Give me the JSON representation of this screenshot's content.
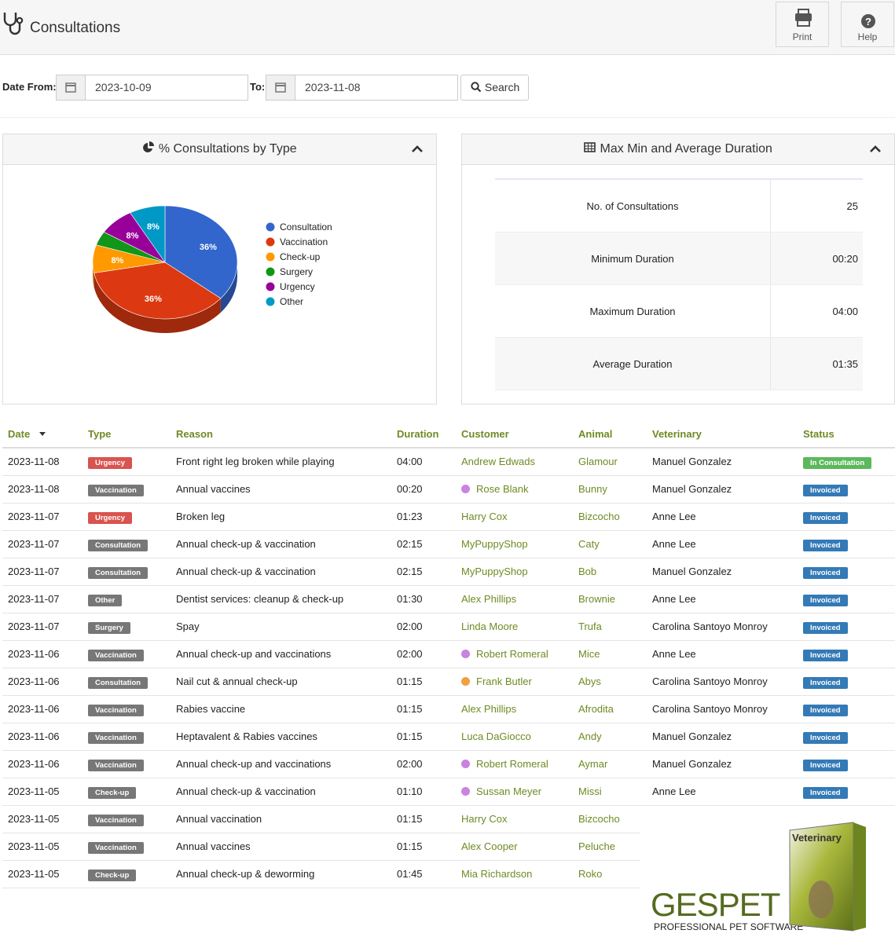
{
  "header": {
    "title": "Consultations",
    "buttons": [
      "Print",
      "Help"
    ]
  },
  "filters": {
    "from_label": "Date From:",
    "from": "2023-10-09",
    "to_label": "To:",
    "to": "2023-11-08",
    "search": "Search"
  },
  "chart_data": {
    "type": "pie",
    "title": "% Consultations by Type",
    "categories": [
      "Consultation",
      "Vaccination",
      "Check-up",
      "Surgery",
      "Urgency",
      "Other"
    ],
    "values": [
      36,
      36,
      8,
      4,
      8,
      8
    ],
    "value_labels": [
      "36%",
      "36%",
      "8%",
      null,
      "8%",
      "8%"
    ],
    "colors": [
      "#3366cc",
      "#dc3912",
      "#ff9900",
      "#109618",
      "#990099",
      "#0099c6"
    ],
    "legend": "right"
  },
  "stats": {
    "title": "Max Min and Average Duration",
    "rows": [
      [
        "No. of Consultations",
        "25"
      ],
      [
        "Minimum Duration",
        "00:20"
      ],
      [
        "Maximum Duration",
        "04:00"
      ],
      [
        "Average Duration",
        "01:35"
      ]
    ]
  },
  "table": {
    "columns": [
      "Date",
      "Type",
      "Reason",
      "Duration",
      "Customer",
      "Animal",
      "Veterinary",
      "Status"
    ],
    "type_colors": {
      "Urgency": "#d9534f",
      "Vaccination": "#777777",
      "Consultation": "#777777",
      "Other": "#777777",
      "Surgery": "#777777",
      "Check-up": "#777777"
    },
    "status_colors": {
      "In Consultation": "#5cb85c",
      "Invoiced": "#337ab7"
    },
    "rows": [
      {
        "cells": [
          "2023-11-08",
          "Urgency",
          "Front right leg broken while playing",
          "04:00",
          "Andrew Edwads",
          "Glamour",
          "Manuel Gonzalez",
          "In Consultation"
        ]
      },
      {
        "cells": [
          "2023-11-08",
          "Vaccination",
          "Annual vaccines",
          "00:20",
          "Rose Blank",
          "Bunny",
          "Manuel Gonzalez",
          "Invoiced"
        ],
        "dot": "#c983e0"
      },
      {
        "cells": [
          "2023-11-07",
          "Urgency",
          "Broken leg",
          "01:23",
          "Harry Cox",
          "Bizcocho",
          "Anne Lee",
          "Invoiced"
        ]
      },
      {
        "cells": [
          "2023-11-07",
          "Consultation",
          "Annual check-up & vaccination",
          "02:15",
          "MyPuppyShop",
          "Caty",
          "Anne Lee",
          "Invoiced"
        ]
      },
      {
        "cells": [
          "2023-11-07",
          "Consultation",
          "Annual check-up & vaccination",
          "02:15",
          "MyPuppyShop",
          "Bob",
          "Manuel Gonzalez",
          "Invoiced"
        ]
      },
      {
        "cells": [
          "2023-11-07",
          "Other",
          "Dentist services: cleanup & check-up",
          "01:30",
          "Alex Phillips",
          "Brownie",
          "Anne Lee",
          "Invoiced"
        ]
      },
      {
        "cells": [
          "2023-11-07",
          "Surgery",
          "Spay",
          "02:00",
          "Linda Moore",
          "Trufa",
          "Carolina Santoyo Monroy",
          "Invoiced"
        ]
      },
      {
        "cells": [
          "2023-11-06",
          "Vaccination",
          "Annual check-up and vaccinations",
          "02:00",
          "Robert Romeral",
          "Mice",
          "Anne Lee",
          "Invoiced"
        ],
        "dot": "#c983e0"
      },
      {
        "cells": [
          "2023-11-06",
          "Consultation",
          "Nail cut & annual check-up",
          "01:15",
          "Frank Butler",
          "Abys",
          "Carolina Santoyo Monroy",
          "Invoiced"
        ],
        "dot": "#f0a040"
      },
      {
        "cells": [
          "2023-11-06",
          "Vaccination",
          "Rabies vaccine",
          "01:15",
          "Alex Phillips",
          "Afrodita",
          "Carolina Santoyo Monroy",
          "Invoiced"
        ]
      },
      {
        "cells": [
          "2023-11-06",
          "Vaccination",
          "Heptavalent & Rabies vaccines",
          "01:15",
          "Luca DaGiocco",
          "Andy",
          "Manuel Gonzalez",
          "Invoiced"
        ]
      },
      {
        "cells": [
          "2023-11-06",
          "Vaccination",
          "Annual check-up and vaccinations",
          "02:00",
          "Robert Romeral",
          "Aymar",
          "Manuel Gonzalez",
          "Invoiced"
        ],
        "dot": "#c983e0"
      },
      {
        "cells": [
          "2023-11-05",
          "Check-up",
          "Annual check-up & vaccination",
          "01:10",
          "Sussan Meyer",
          "Missi",
          "Anne Lee",
          "Invoiced"
        ],
        "dot": "#c983e0"
      },
      {
        "cells": [
          "2023-11-05",
          "Vaccination",
          "Annual vaccination",
          "01:15",
          "Harry Cox",
          "Bizcocho"
        ]
      },
      {
        "cells": [
          "2023-11-05",
          "Vaccination",
          "Annual vaccines",
          "01:15",
          "Alex Cooper",
          "Peluche"
        ]
      },
      {
        "cells": [
          "2023-11-05",
          "Check-up",
          "Annual check-up & deworming",
          "01:45",
          "Mia Richardson",
          "Roko"
        ]
      }
    ]
  },
  "logo": {
    "brand": "GESPET",
    "tagline": "PROFESSIONAL PET SOFTWARE",
    "box_title": "Veterinary"
  }
}
